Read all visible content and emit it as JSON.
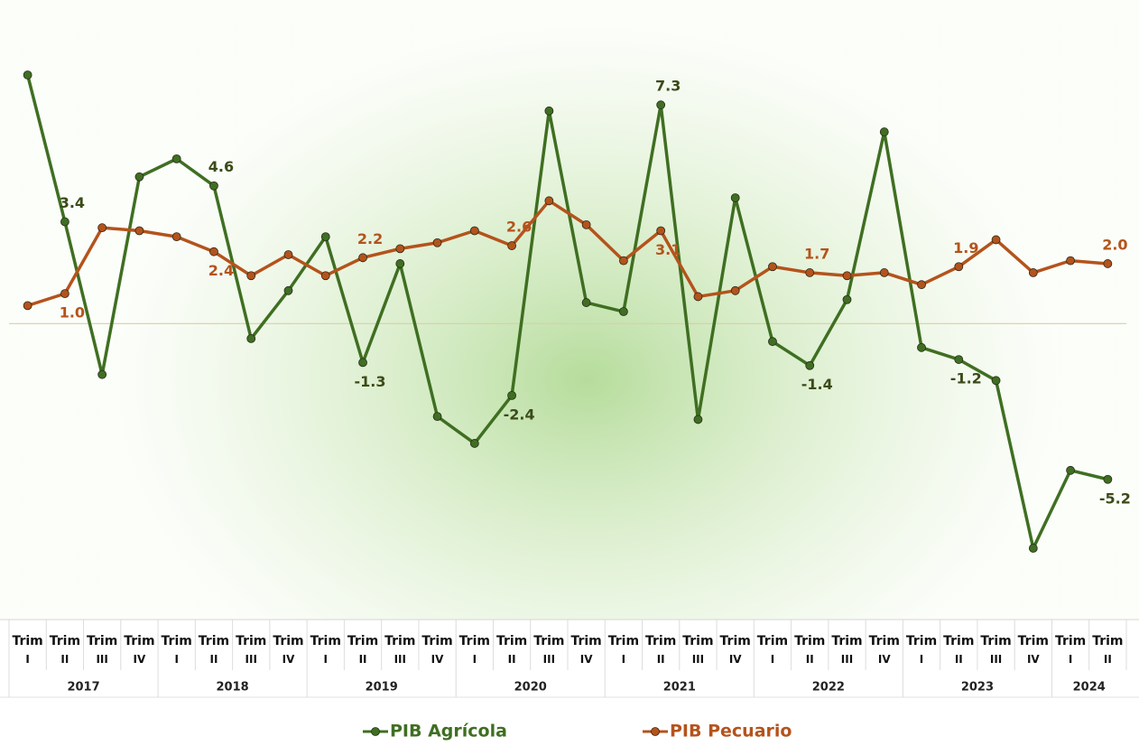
{
  "chart_data": {
    "type": "line",
    "categories": [
      "Trim I",
      "Trim II",
      "Trim III",
      "Trim IV",
      "Trim I",
      "Trim II",
      "Trim III",
      "Trim IV",
      "Trim I",
      "Trim II",
      "Trim III",
      "Trim IV",
      "Trim I",
      "Trim II",
      "Trim III",
      "Trim IV",
      "Trim I",
      "Trim II",
      "Trim III",
      "Trim IV",
      "Trim I",
      "Trim II",
      "Trim III",
      "Trim IV",
      "Trim I",
      "Trim II",
      "Trim III",
      "Trim IV",
      "Trim I",
      "Trim II"
    ],
    "year_groups": [
      {
        "name": "2017",
        "count": 4
      },
      {
        "name": "2018",
        "count": 4
      },
      {
        "name": "2019",
        "count": 4
      },
      {
        "name": "2020",
        "count": 4
      },
      {
        "name": "2021",
        "count": 4
      },
      {
        "name": "2022",
        "count": 4
      },
      {
        "name": "2023",
        "count": 4
      },
      {
        "name": "2024",
        "count": 2
      }
    ],
    "ylim": [
      -9.7,
      10.2
    ],
    "series": [
      {
        "name": "PIB  Agrícola",
        "color": "#3f6f22",
        "label_color": "#3b4a18",
        "values": [
          8.3,
          3.4,
          -1.7,
          4.9,
          5.5,
          4.6,
          -0.5,
          1.1,
          2.9,
          -1.3,
          2.0,
          -3.1,
          -4.0,
          -2.4,
          7.1,
          0.7,
          0.4,
          7.3,
          -3.2,
          4.2,
          -0.6,
          -1.4,
          0.8,
          6.4,
          -0.8,
          -1.2,
          -1.9,
          -7.5,
          -4.9,
          -5.2
        ],
        "value_labels": [
          null,
          "3.4",
          null,
          null,
          null,
          "4.6",
          null,
          null,
          null,
          "-1.3",
          null,
          null,
          null,
          "-2.4",
          null,
          null,
          null,
          "7.3",
          null,
          null,
          null,
          "-1.4",
          null,
          null,
          null,
          "-1.2",
          null,
          null,
          null,
          "-5.2"
        ]
      },
      {
        "name": "PIB Pecuario",
        "color": "#b4531c",
        "label_color": "#b4531c",
        "values": [
          0.6,
          1.0,
          3.2,
          3.1,
          2.9,
          2.4,
          1.6,
          2.3,
          1.6,
          2.2,
          2.5,
          2.7,
          3.1,
          2.6,
          4.1,
          3.3,
          2.1,
          3.1,
          0.9,
          1.1,
          1.9,
          1.7,
          1.6,
          1.7,
          1.3,
          1.9,
          2.8,
          1.7,
          2.1,
          2.0
        ],
        "value_labels": [
          null,
          "1.0",
          null,
          null,
          null,
          "2.4",
          null,
          null,
          null,
          "2.2",
          null,
          null,
          null,
          "2.6",
          null,
          null,
          null,
          "3.1",
          null,
          null,
          null,
          "1.7",
          null,
          null,
          null,
          "1.9",
          null,
          null,
          null,
          "2.0"
        ]
      }
    ]
  }
}
